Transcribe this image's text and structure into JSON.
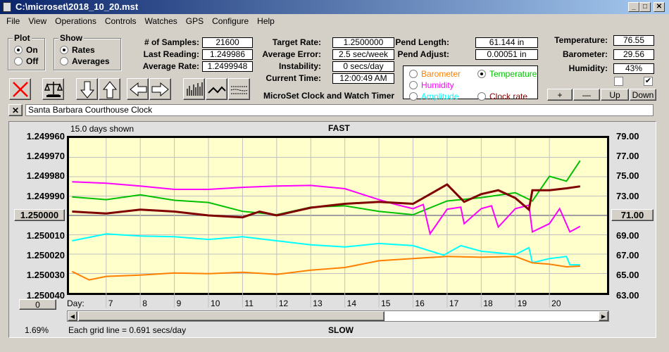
{
  "window": {
    "title": "C:\\microset\\2018_10_20.mst",
    "min": "_",
    "max": "□",
    "close": "✕"
  },
  "menu": [
    "File",
    "View",
    "Operations",
    "Controls",
    "Watches",
    "GPS",
    "Configure",
    "Help"
  ],
  "plot_group": {
    "title": "Plot",
    "options": [
      {
        "label": "On",
        "checked": true
      },
      {
        "label": "Off",
        "checked": false
      }
    ]
  },
  "show_group": {
    "title": "Show",
    "options": [
      {
        "label": "Rates",
        "checked": true
      },
      {
        "label": "Averages",
        "checked": false
      }
    ]
  },
  "stats1": [
    {
      "label": "# of Samples:",
      "value": "21600"
    },
    {
      "label": "Last Reading:",
      "value": "1.249986"
    },
    {
      "label": "Average Rate:",
      "value": "1.2499948"
    }
  ],
  "stats2": [
    {
      "label": "Target Rate:",
      "value": "1.2500000"
    },
    {
      "label": "Average Error:",
      "value": "2.5 sec/week"
    },
    {
      "label": "Instability:",
      "value": "0 secs/day"
    },
    {
      "label": "Current Time:",
      "value": "12:00:49 AM"
    }
  ],
  "stats3": [
    {
      "label": "Pend Length:",
      "value": "61.144 in"
    },
    {
      "label": "Pend Adjust:",
      "value": "0.00051 in"
    }
  ],
  "env": [
    {
      "label": "Temperature:",
      "value": "76.55"
    },
    {
      "label": "Barometer:",
      "value": "29.56"
    },
    {
      "label": "Humidity:",
      "value": "43%"
    }
  ],
  "app_name": "MicroSet Clock and Watch Timer",
  "legend": [
    {
      "label": "Barometer",
      "color": "#ff8000",
      "checked": false
    },
    {
      "label": "Temperature",
      "color": "#00c000",
      "checked": true
    },
    {
      "label": "Humidity",
      "color": "#ff00ff",
      "checked": false
    },
    {
      "label": "Amplitude",
      "color": "#00ffff",
      "checked": false
    },
    {
      "label": "Clock rate",
      "color": "#800000",
      "checked": false
    }
  ],
  "checkboxes": [
    {
      "checked": false
    },
    {
      "checked": true
    }
  ],
  "scale_buttons": [
    "+",
    "—",
    "Up",
    "Down"
  ],
  "toolbar": [
    "delete-icon",
    "balance-scale-icon",
    "arrow-down-icon",
    "arrow-up-icon",
    "arrow-left-icon",
    "arrow-right-icon",
    "bar-graph-icon",
    "line-graph-icon",
    "averages-lines-icon"
  ],
  "watch_name": "Santa Barbara Courthouse Clock",
  "clear_label": "✕",
  "chart": {
    "days_shown": "15.0 days shown",
    "fast": "FAST",
    "slow": "SLOW",
    "center_left": "1.250000",
    "center_right": "71.00",
    "offset_button": "0",
    "percent": "1.69%",
    "grid_note": "Each grid line = 0.691 secs/day",
    "day_label": "Day:"
  },
  "chart_data": {
    "type": "line",
    "grid": true,
    "xlim": [
      5.91,
      21.69
    ],
    "x_ticks": [
      "7",
      "8",
      "9",
      "10",
      "11",
      "12",
      "13",
      "14",
      "15",
      "16",
      "17",
      "18",
      "19",
      "20"
    ],
    "left_axis": {
      "ticks": [
        "1.249960",
        "1.249970",
        "1.249980",
        "1.249990",
        "1.250000",
        "1.250010",
        "1.250020",
        "1.250030",
        "1.250040"
      ],
      "ylim": [
        1.24996,
        1.25004
      ],
      "inverted": true
    },
    "right_axis": {
      "ticks": [
        "79.00",
        "77.00",
        "75.00",
        "73.00",
        "71.00",
        "69.00",
        "67.00",
        "65.00",
        "63.00"
      ],
      "ylim": [
        63,
        79
      ]
    },
    "series": [
      {
        "name": "Temperature",
        "axis": "right",
        "color": "#00c000",
        "x": [
          6,
          7,
          8,
          9,
          10,
          11,
          12,
          13,
          14,
          15,
          16,
          17,
          18,
          19,
          19.5,
          20,
          20.5,
          20.9
        ],
        "y": [
          72.91,
          72.63,
          73.12,
          72.56,
          72.34,
          71.42,
          71.07,
          71.85,
          71.99,
          71.42,
          71.07,
          72.49,
          72.84,
          73.34,
          72.49,
          75.04,
          74.54,
          76.66
        ]
      },
      {
        "name": "Humidity",
        "axis": "right",
        "color": "#ff00ff",
        "x": [
          6,
          7,
          8,
          9,
          10,
          11,
          12,
          13,
          14,
          15,
          15.5,
          16,
          16.3,
          16.5,
          17,
          17.4,
          17.5,
          18,
          18.3,
          18.5,
          19,
          19.4,
          19.5,
          20,
          20.3,
          20.6,
          20.9
        ],
        "y": [
          74.47,
          74.33,
          74.04,
          73.69,
          73.69,
          73.9,
          74.04,
          74.1,
          73.76,
          72.63,
          72.13,
          71.7,
          72.13,
          69.1,
          71.64,
          71.85,
          70.15,
          71.7,
          71.99,
          69.8,
          71.7,
          72.06,
          69.3,
          70.15,
          71.7,
          69.3,
          69.87
        ]
      },
      {
        "name": "Amplitude",
        "axis": "right",
        "color": "#00ffff",
        "x": [
          6,
          7,
          8,
          9,
          10,
          11,
          12,
          13,
          14,
          15,
          16,
          16.9,
          17.4,
          18,
          19,
          19.4,
          19.5,
          20,
          20.5,
          20.6,
          20.9
        ],
        "y": [
          68.38,
          69.09,
          68.87,
          68.8,
          68.52,
          68.8,
          68.38,
          67.96,
          67.74,
          68.1,
          67.88,
          66.9,
          67.88,
          67.3,
          66.96,
          67.67,
          66.11,
          66.54,
          66.76,
          65.9,
          65.9
        ]
      },
      {
        "name": "Barometer",
        "axis": "right",
        "color": "#ff8000",
        "x": [
          6,
          6.5,
          7,
          8,
          9,
          10,
          11,
          12,
          13,
          14,
          15,
          16,
          17,
          18,
          19,
          19.5,
          20,
          20.5,
          20.9
        ],
        "y": [
          65.2,
          64.34,
          64.7,
          64.84,
          65.05,
          64.98,
          65.12,
          64.91,
          65.34,
          65.62,
          66.32,
          66.54,
          66.76,
          66.68,
          66.76,
          66.1,
          65.97,
          65.69,
          65.76
        ]
      },
      {
        "name": "Clock rate",
        "axis": "left",
        "color": "#800000",
        "x": [
          6,
          7,
          8,
          9,
          10,
          11,
          11.5,
          12,
          13,
          14,
          15,
          16,
          16.5,
          17,
          17.5,
          18,
          18.5,
          19,
          19.4,
          19.5,
          20,
          20.5,
          20.9
        ],
        "y": [
          1.249998,
          1.249999,
          1.249997,
          1.249998,
          1.25,
          1.250001,
          1.249998,
          1.25,
          1.249996,
          1.249994,
          1.249993,
          1.249994,
          1.249989,
          1.249984,
          1.249993,
          1.249989,
          1.249987,
          1.249991,
          1.249997,
          1.249987,
          1.249987,
          1.249986,
          1.249985
        ]
      }
    ]
  }
}
